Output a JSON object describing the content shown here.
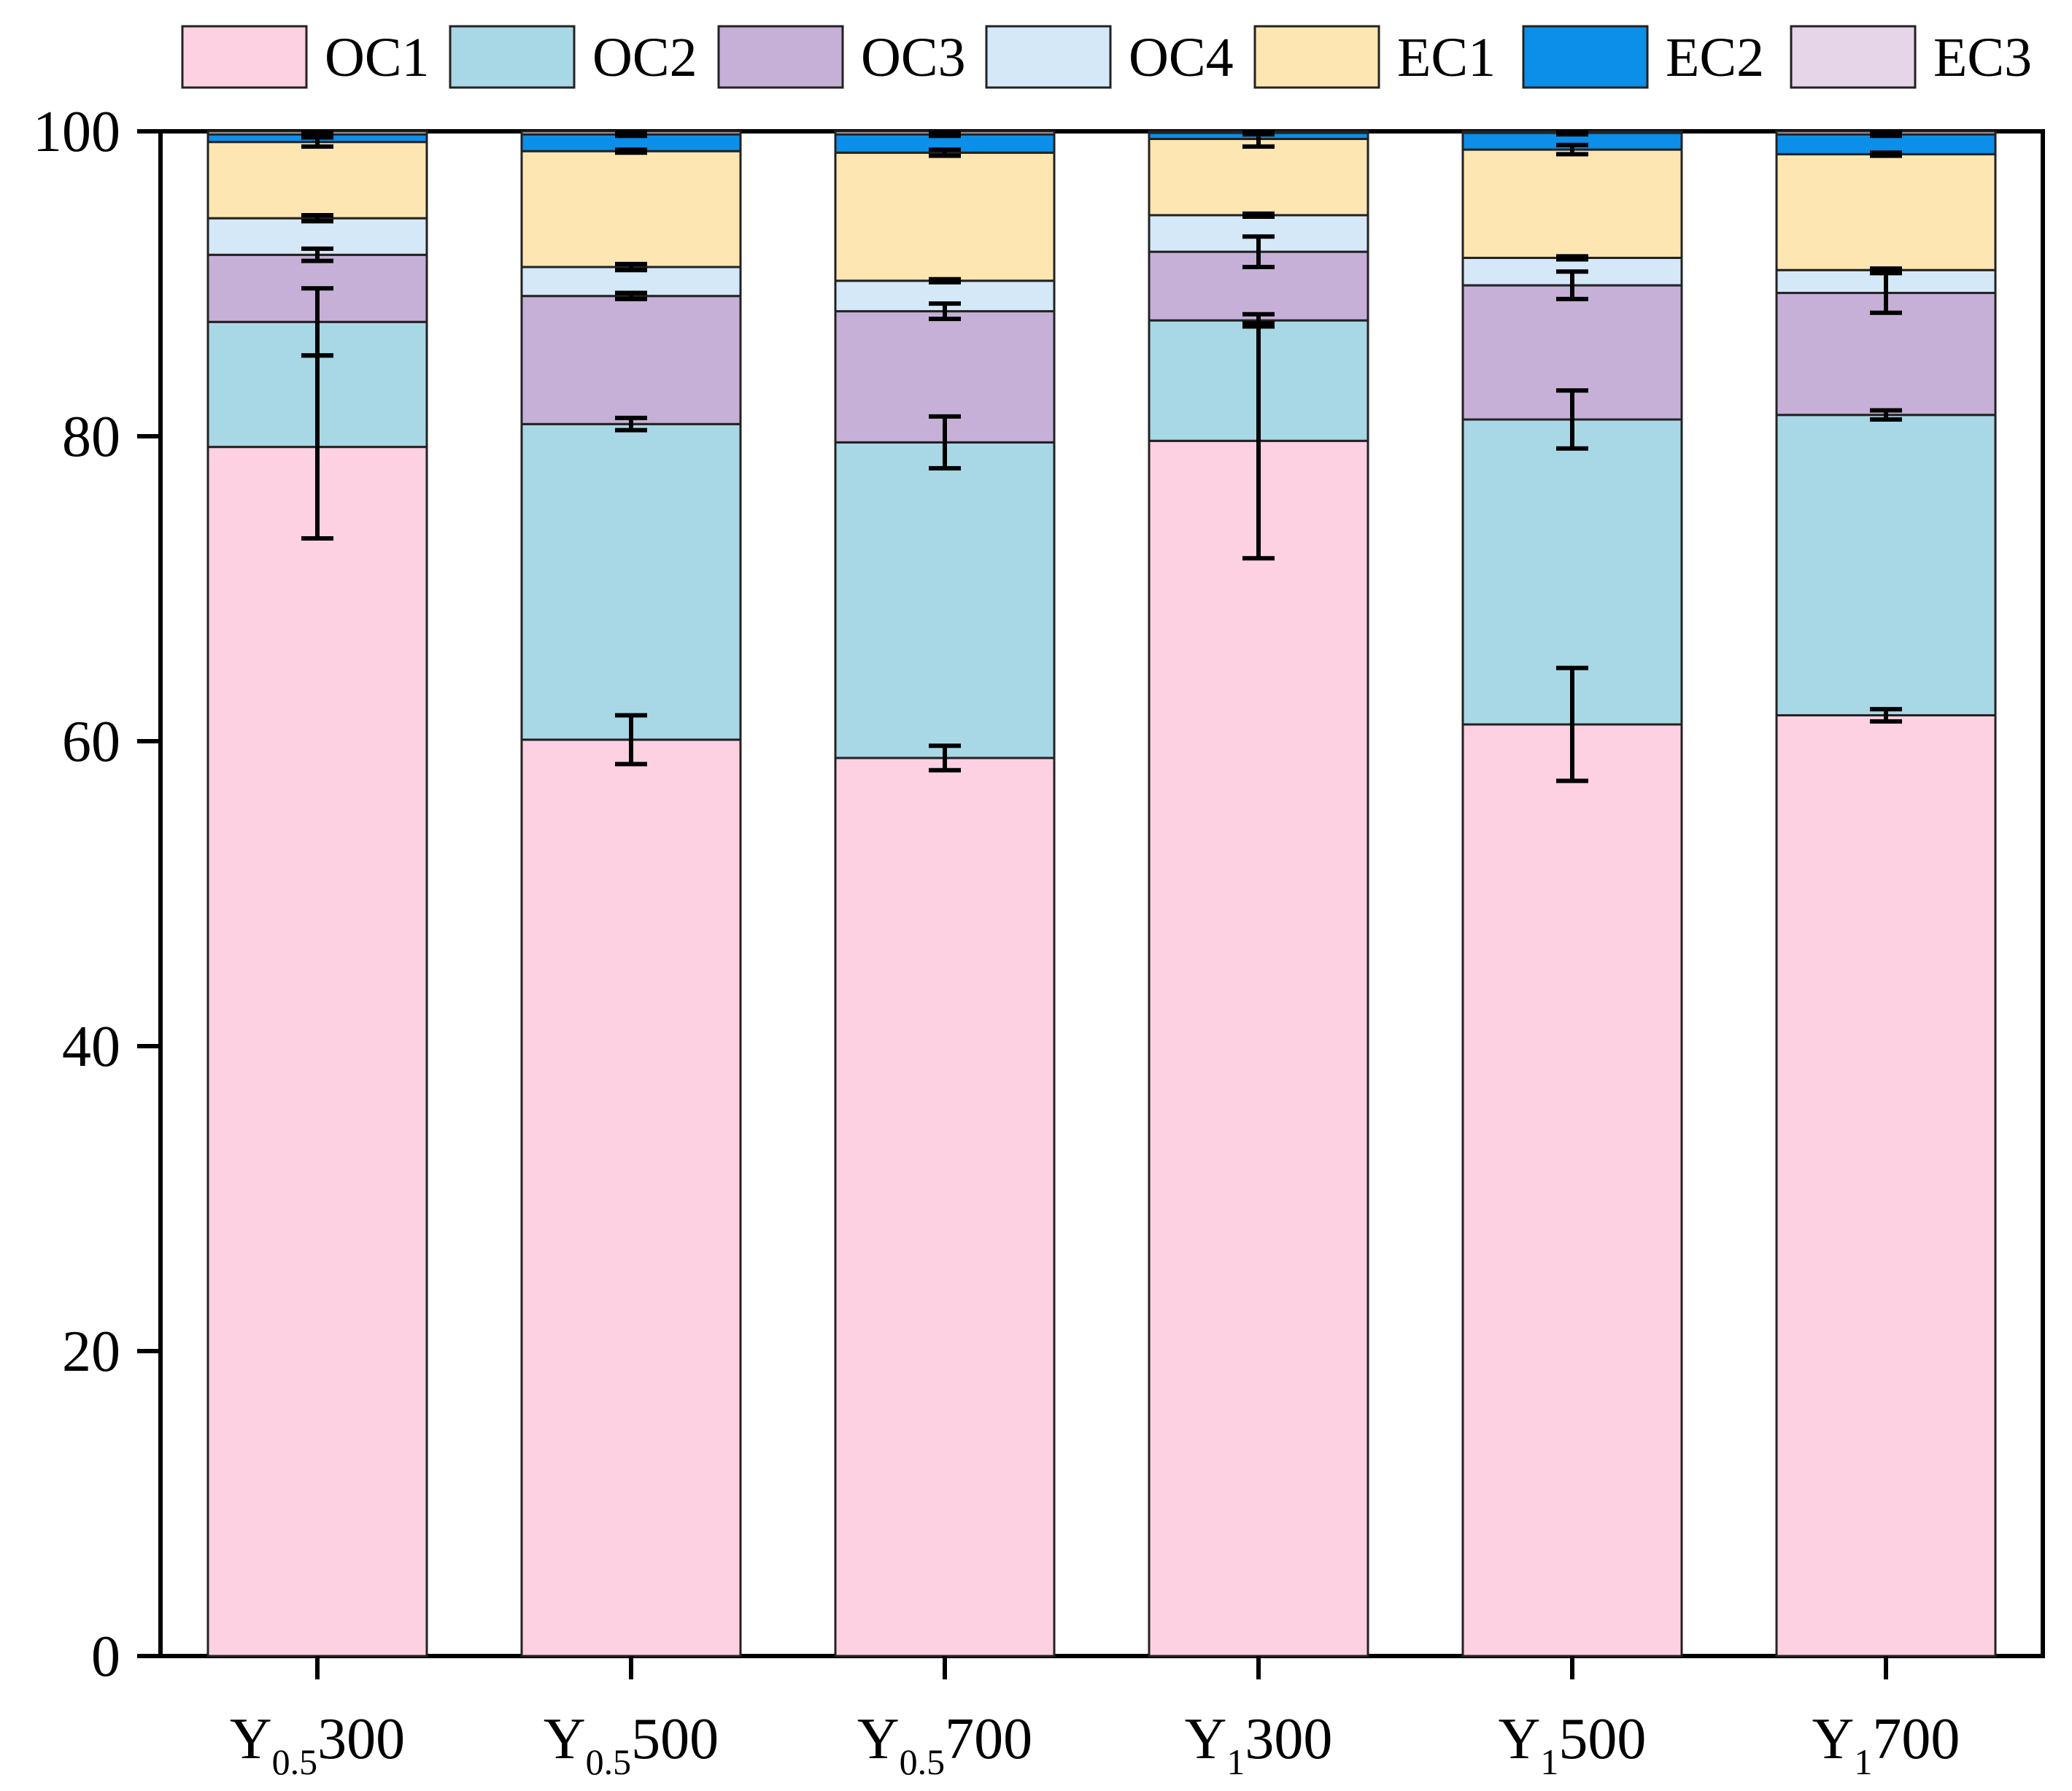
{
  "chart_data": {
    "type": "bar",
    "stacked": true,
    "title": "",
    "xlabel": "",
    "ylabel": "",
    "ylim": [
      0,
      100
    ],
    "yticks": [
      0,
      20,
      40,
      60,
      80,
      100
    ],
    "legend_position": "top",
    "categories": [
      {
        "main": "Y",
        "sub": "0.5",
        "suffix": "300"
      },
      {
        "main": "Y",
        "sub": "0.5",
        "suffix": "500"
      },
      {
        "main": "Y",
        "sub": "0.5",
        "suffix": "700"
      },
      {
        "main": "Y",
        "sub": "1",
        "suffix": "300"
      },
      {
        "main": "Y",
        "sub": "1",
        "suffix": "500"
      },
      {
        "main": "Y",
        "sub": "1",
        "suffix": "700"
      }
    ],
    "series": [
      {
        "name": "OC1",
        "color": "#fdd0e2",
        "values": [
          79.3,
          60.1,
          58.9,
          79.7,
          61.1,
          61.7
        ],
        "errors": [
          6.0,
          1.6,
          0.8,
          7.7,
          3.7,
          0.4
        ]
      },
      {
        "name": "OC2",
        "color": "#a8d8e6",
        "values": [
          8.2,
          20.7,
          20.7,
          7.9,
          20.0,
          19.7
        ],
        "errors": [
          2.2,
          0.4,
          1.7,
          0.4,
          1.9,
          0.3
        ]
      },
      {
        "name": "OC3",
        "color": "#c7b0d8",
        "values": [
          4.4,
          8.4,
          8.6,
          4.5,
          8.8,
          8.0
        ],
        "errors": [
          0.4,
          0.2,
          0.5,
          1.0,
          0.9,
          1.3
        ]
      },
      {
        "name": "OC4",
        "color": "#d4e8f8",
        "values": [
          2.4,
          1.9,
          2.0,
          2.4,
          1.8,
          1.5
        ],
        "errors": [
          0.2,
          0.2,
          0.1,
          0.1,
          0.1,
          0.1
        ]
      },
      {
        "name": "EC1",
        "color": "#fde6b2",
        "values": [
          5.0,
          7.6,
          8.4,
          5.0,
          7.1,
          7.6
        ],
        "errors": [
          0.3,
          0.1,
          0.2,
          0.5,
          0.3,
          0.1
        ]
      },
      {
        "name": "EC2",
        "color": "#0b8fe8",
        "values": [
          0.5,
          1.1,
          1.2,
          0.4,
          1.1,
          1.3
        ],
        "errors": [
          0.1,
          0.1,
          0.1,
          0.1,
          0.1,
          0.1
        ]
      },
      {
        "name": "EC3",
        "color": "#e6d5e8",
        "values": [
          0.2,
          0.2,
          0.2,
          0.1,
          0.1,
          0.2
        ],
        "errors": [
          0,
          0,
          0,
          0,
          0,
          0
        ]
      }
    ]
  }
}
